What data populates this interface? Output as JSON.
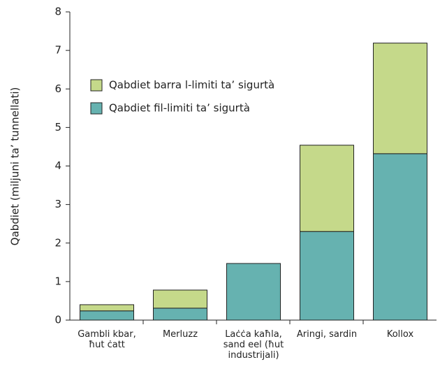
{
  "chart_data": {
    "type": "stacked_bar",
    "ylabel": "Qabdiet (miljuni ta’ tunnellati)",
    "categories": [
      "Gambli kbar, ħut ċatt",
      "Merluzz",
      "Laċċa kaħla, sand eel (ħut industrijali)",
      "Aringi, sardin",
      "Kollox"
    ],
    "series": [
      {
        "name": "Qabdiet fil-limiti ta’ sigurtà",
        "color": "#66b2b0",
        "values": [
          0.24,
          0.31,
          1.47,
          2.3,
          4.32
        ]
      },
      {
        "name": "Qabdiet barra l-limiti ta’ sigurtà",
        "color": "#c5d98a",
        "values": [
          0.16,
          0.47,
          0,
          2.24,
          2.87
        ]
      }
    ],
    "ylim": [
      0,
      8
    ],
    "yticks": [
      0,
      1,
      2,
      3,
      4,
      5,
      6,
      7,
      8
    ],
    "legend": "upper left"
  }
}
